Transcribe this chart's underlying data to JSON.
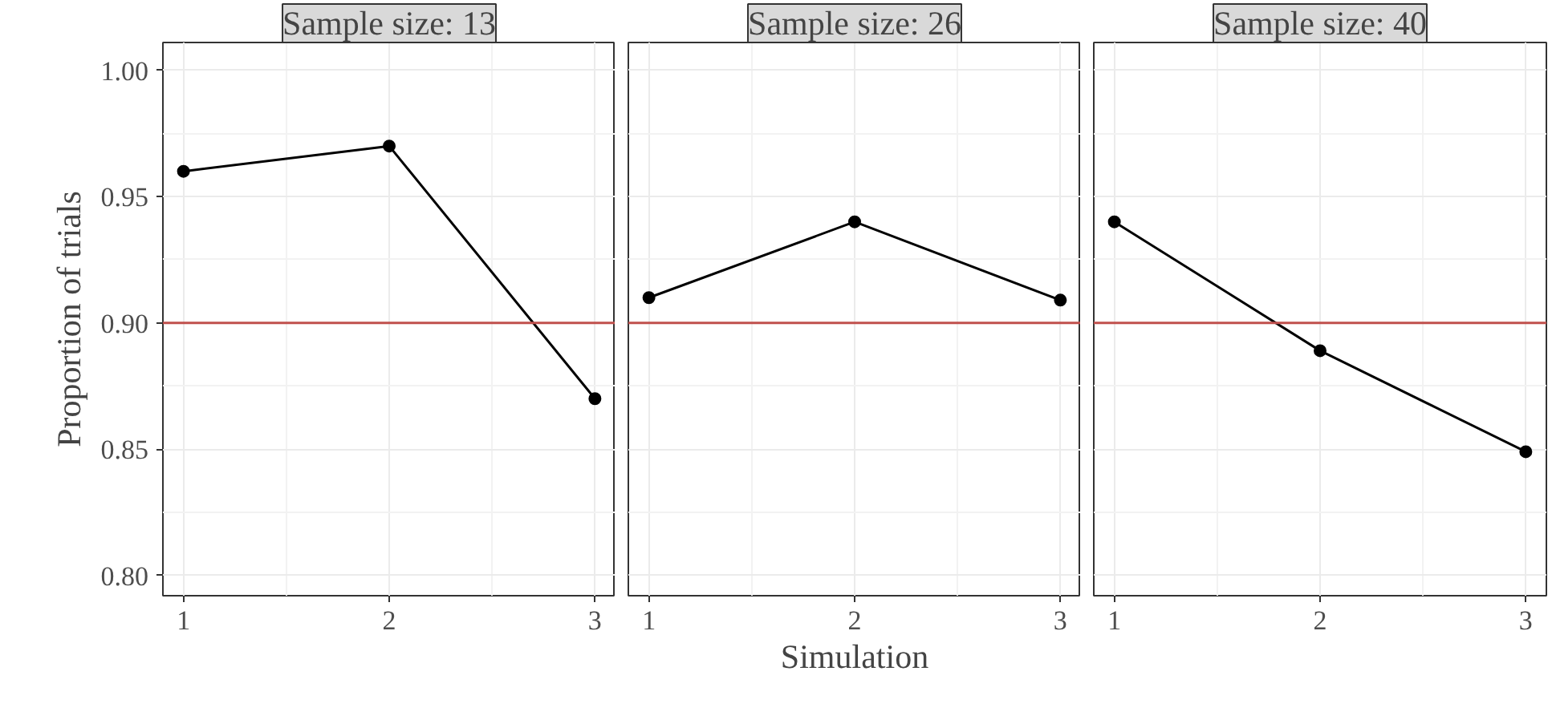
{
  "chart_data": [
    {
      "type": "line",
      "title": "Sample size: 13",
      "ylabel": "Proportion of trials",
      "x": [
        1,
        2,
        3
      ],
      "values": [
        0.96,
        0.97,
        0.87
      ],
      "color": "#000000",
      "marker": "circle",
      "xlim": [
        0.9,
        3.1
      ],
      "ylim": [
        0.792,
        1.011
      ],
      "xticks": [
        1,
        2,
        3
      ],
      "yticks": [
        {
          "value": 0.8,
          "label": "0.80"
        },
        {
          "value": 0.85,
          "label": "0.85"
        },
        {
          "value": 0.9,
          "label": "0.90"
        },
        {
          "value": 0.95,
          "label": "0.95"
        },
        {
          "value": 1.0,
          "label": "1.00"
        }
      ],
      "grid": true,
      "ref_lines": [
        {
          "axis": "y",
          "value": 0.9,
          "color": "#c0504d"
        }
      ]
    },
    {
      "type": "line",
      "title": "Sample size: 26",
      "xlabel": "Simulation",
      "x": [
        1,
        2,
        3
      ],
      "values": [
        0.91,
        0.94,
        0.909
      ],
      "color": "#000000",
      "marker": "circle",
      "xlim": [
        0.9,
        3.1
      ],
      "ylim": [
        0.792,
        1.011
      ],
      "xticks": [
        1,
        2,
        3
      ],
      "yticks": [
        0.8,
        0.85,
        0.9,
        0.95,
        1.0
      ],
      "grid": true,
      "tick_labels": "x",
      "ref_lines": [
        {
          "axis": "y",
          "value": 0.9,
          "color": "#c0504d"
        }
      ]
    },
    {
      "type": "line",
      "title": "Sample size: 40",
      "x": [
        1,
        2,
        3
      ],
      "values": [
        0.94,
        0.889,
        0.849
      ],
      "color": "#000000",
      "marker": "circle",
      "xlim": [
        0.9,
        3.1
      ],
      "ylim": [
        0.792,
        1.011
      ],
      "xticks": [
        1,
        2,
        3
      ],
      "yticks": [
        0.8,
        0.85,
        0.9,
        0.95,
        1.0
      ],
      "grid": true,
      "tick_labels": "x",
      "ref_lines": [
        {
          "axis": "y",
          "value": 0.9,
          "color": "#c0504d"
        }
      ]
    }
  ]
}
